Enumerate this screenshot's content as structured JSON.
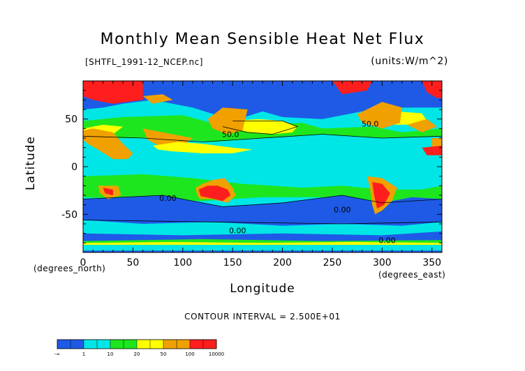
{
  "chart_data": {
    "type": "heatmap",
    "title": "Monthly Mean Sensible Heat Net Flux",
    "file_label": "[SHTFL_1991-12_NCEP.nc]",
    "units_label": "(units:W/m^2)",
    "xlabel": "Longitude",
    "ylabel": "Latitude",
    "x_unit_label": "(degrees_east)",
    "y_unit_label": "(degrees_north)",
    "xlim": [
      0,
      360
    ],
    "ylim": [
      -90,
      90
    ],
    "x_ticks": [
      0,
      50,
      100,
      150,
      200,
      250,
      300,
      350
    ],
    "y_ticks": [
      -50,
      0,
      50
    ],
    "contour_interval_text": "CONTOUR INTERVAL = 2.500E+01",
    "contour_labels": [
      {
        "text": "50.0",
        "x": 148,
        "y": 31
      },
      {
        "text": "50.0",
        "x": 288,
        "y": 42
      },
      {
        "text": "0.00",
        "x": 85,
        "y": -36
      },
      {
        "text": "0.00",
        "x": 260,
        "y": -48
      },
      {
        "text": "0.00",
        "x": 155,
        "y": -70
      },
      {
        "text": "0.00",
        "x": 305,
        "y": -80
      }
    ],
    "colorbar": {
      "colors": [
        "#1e5ae6",
        "#1e5ae6",
        "#00e6e6",
        "#00e6e6",
        "#1ee61e",
        "#1ee61e",
        "#ffff00",
        "#ffff00",
        "#f0a000",
        "#f0a000",
        "#ff1e1e",
        "#ff1e1e"
      ],
      "tick_labels": [
        "-∞",
        "1",
        "10",
        "20",
        "50",
        "100",
        "10000"
      ]
    }
  }
}
